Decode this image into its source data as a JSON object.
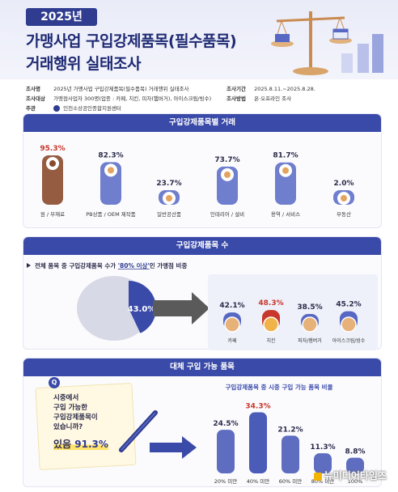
{
  "header": {
    "year": "2025년",
    "title_line1": "가맹사업 구입강제품목(필수품목)",
    "title_line2": "거래행위 실태조사"
  },
  "info": {
    "name_label": "조사명",
    "name_value": "2025년 가맹사업 구입강제품목(필수품목) 거래행위 실태조사",
    "target_label": "조사대상",
    "target_value": "가맹점사업자 300명(업종 : 카페, 치킨, 피자(햄버거), 아이스크림/빙수)",
    "host_label": "주관",
    "host_value": "인천소상공인종합지원센터",
    "period_label": "조사기간",
    "period_value": "2025.8.11.~2025.8.28.",
    "method_label": "조사방법",
    "method_value": "온·오프라인 조사"
  },
  "section1": {
    "heading": "구입강제품목별 거래"
  },
  "section2": {
    "heading": "구입강제품목 수",
    "note_prefix": "전체 품목 중 구입강제품목 수가 ",
    "note_highlight": "'80% 이상'",
    "note_suffix": "인 가맹점 비중"
  },
  "section3": {
    "heading": "대체 구입 가능 품목",
    "chart_title": "구입강제품목 중 시중 구입 가능 품목 비율",
    "question_badge": "Q",
    "question_lines": [
      "시중에서",
      "구입 가능한",
      "구입강제품목이",
      "있습니까?"
    ],
    "answer_prefix": "있음 ",
    "answer_value": "91.3%"
  },
  "watermark": "뉴미디어타임즈",
  "colors": {
    "navy": "#2f3c8f",
    "heading_blue": "#3a4aa8",
    "red": "#c8372b",
    "bar_blue": "#4a5bb8",
    "capsule_blue": "#5667c4"
  },
  "chart_data": [
    {
      "type": "bar",
      "categories": [
        "원 / 부재료",
        "PB상품 / OEM 제작품",
        "일반공산품",
        "인테리어 / 설비",
        "용역 / 서비스",
        "부동산"
      ],
      "values": [
        95.3,
        82.3,
        23.7,
        73.7,
        81.7,
        2.0
      ],
      "value_labels": [
        "95.3%",
        "82.3%",
        "23.7%",
        "73.7%",
        "81.7%",
        "2.0%"
      ],
      "icons": [
        "coffee-beans-icon",
        "pb-product-tag-icon",
        "cup-icon",
        "paint-roller-icon",
        "service-stars-icon",
        "house-icon"
      ],
      "highlight_index": 0,
      "ylim": [
        0,
        100
      ]
    },
    {
      "type": "pie",
      "categories": [
        "80% 이상"
      ],
      "values": [
        43.0
      ],
      "value_labels": [
        "43.0%"
      ]
    },
    {
      "type": "bar",
      "categories": [
        "카페",
        "치킨",
        "피자/햄버거",
        "아이스크림/빙수"
      ],
      "values": [
        42.1,
        48.3,
        38.5,
        45.2
      ],
      "value_labels": [
        "42.1%",
        "48.3%",
        "38.5%",
        "45.2%"
      ],
      "icons": [
        "coffee-cup-icon",
        "chicken-icon",
        "burger-icon",
        "ice-cream-icon"
      ],
      "highlight_index": 1,
      "ylim": [
        0,
        100
      ]
    },
    {
      "type": "bar",
      "categories": [
        "20% 미만",
        "40% 미만",
        "60% 미만",
        "80% 미만",
        "100%"
      ],
      "values": [
        24.5,
        34.3,
        21.2,
        11.3,
        8.8
      ],
      "value_labels": [
        "24.5%",
        "34.3%",
        "21.2%",
        "11.3%",
        "8.8%"
      ],
      "highlight_index": 1,
      "ylim": [
        0,
        40
      ]
    }
  ]
}
